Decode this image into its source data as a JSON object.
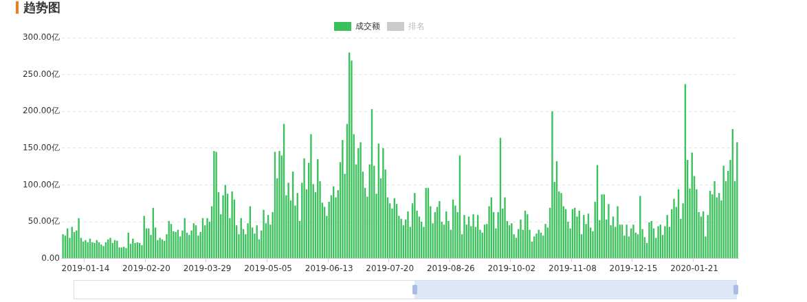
{
  "chart_data": {
    "type": "bar",
    "title": "趋势图",
    "categories": [
      null,
      null,
      null,
      null,
      null,
      null,
      null,
      null,
      null,
      null,
      "2019-01-14",
      null,
      null,
      null,
      null,
      null,
      null,
      null,
      null,
      null,
      null,
      null,
      null,
      null,
      null,
      null,
      null,
      null,
      null,
      null,
      null,
      null,
      null,
      null,
      null,
      null,
      null,
      "2019-02-20",
      null,
      null,
      null,
      null,
      null,
      null,
      null,
      null,
      null,
      null,
      null,
      null,
      null,
      null,
      null,
      null,
      null,
      null,
      null,
      null,
      null,
      null,
      null,
      null,
      null,
      null,
      "2019-03-29",
      null,
      null,
      null,
      null,
      null,
      null,
      null,
      null,
      null,
      null,
      null,
      null,
      null,
      null,
      null,
      null,
      null,
      null,
      null,
      null,
      null,
      null,
      null,
      null,
      null,
      null,
      "2019-05-05",
      null,
      null,
      null,
      null,
      null,
      null,
      null,
      null,
      null,
      null,
      null,
      null,
      null,
      null,
      null,
      null,
      null,
      null,
      null,
      null,
      null,
      null,
      null,
      null,
      null,
      null,
      "2019-06-13",
      null,
      null,
      null,
      null,
      null,
      null,
      null,
      null,
      null,
      null,
      null,
      null,
      null,
      null,
      null,
      null,
      null,
      null,
      null,
      null,
      null,
      null,
      null,
      null,
      null,
      null,
      "2019-07-20",
      null,
      null,
      null,
      null,
      null,
      null,
      null,
      null,
      null,
      null,
      null,
      null,
      null,
      null,
      null,
      null,
      null,
      null,
      null,
      null,
      null,
      null,
      null,
      null,
      null,
      null,
      "2019-08-26",
      null,
      null,
      null,
      null,
      null,
      null,
      null,
      null,
      null,
      null,
      null,
      null,
      null,
      null,
      null,
      null,
      null,
      null,
      null,
      null,
      null,
      null,
      null,
      null,
      null,
      null,
      "2019-10-02",
      null,
      null,
      null,
      null,
      null,
      null,
      null,
      null,
      null,
      null,
      null,
      null,
      null,
      null,
      null,
      null,
      null,
      null,
      null,
      null,
      null,
      null,
      null,
      null,
      null,
      null,
      "2019-11-08",
      null,
      null,
      null,
      null,
      null,
      null,
      null,
      null,
      null,
      null,
      null,
      null,
      null,
      null,
      null,
      null,
      null,
      null,
      null,
      null,
      null,
      null,
      null,
      null,
      null,
      null,
      "2019-12-15",
      null,
      null,
      null,
      null,
      null,
      null,
      null,
      null,
      null,
      null,
      null,
      null,
      null,
      null,
      null,
      null,
      null,
      null,
      null,
      null,
      null,
      null,
      null,
      null,
      null,
      null,
      "2020-01-21",
      null,
      null,
      null,
      null,
      null,
      null,
      null,
      null,
      null,
      null,
      null,
      null,
      null,
      null,
      null,
      null,
      null,
      null,
      null
    ],
    "series": [
      {
        "name": "成交额",
        "color": "#3ac15b",
        "values": [
          33,
          31,
          41,
          28,
          43,
          36,
          38,
          55,
          28,
          23,
          25,
          22,
          27,
          22,
          21,
          25,
          22,
          19,
          17,
          22,
          26,
          28,
          21,
          25,
          24,
          15,
          15,
          16,
          14,
          35,
          20,
          27,
          21,
          22,
          21,
          18,
          58,
          41,
          41,
          32,
          69,
          42,
          25,
          28,
          26,
          24,
          33,
          51,
          47,
          37,
          36,
          39,
          30,
          38,
          55,
          35,
          32,
          38,
          48,
          45,
          31,
          36,
          55,
          45,
          55,
          50,
          71,
          146,
          145,
          90,
          60,
          86,
          100,
          88,
          55,
          91,
          80,
          45,
          33,
          55,
          40,
          33,
          48,
          71,
          42,
          34,
          45,
          26,
          38,
          66,
          48,
          59,
          46,
          63,
          145,
          109,
          146,
          140,
          183,
          86,
          103,
          79,
          118,
          72,
          89,
          51,
          103,
          136,
          94,
          130,
          169,
          101,
          90,
          135,
          105,
          76,
          70,
          58,
          77,
          86,
          98,
          83,
          93,
          131,
          161,
          115,
          183,
          280,
          269,
          169,
          128,
          150,
          158,
          118,
          96,
          84,
          128,
          203,
          126,
          88,
          156,
          109,
          150,
          121,
          83,
          75,
          68,
          82,
          74,
          58,
          54,
          45,
          53,
          64,
          43,
          75,
          89,
          65,
          57,
          50,
          43,
          96,
          96,
          71,
          48,
          63,
          70,
          78,
          50,
          46,
          64,
          51,
          39,
          80,
          72,
          63,
          140,
          33,
          59,
          46,
          57,
          44,
          60,
          43,
          59,
          39,
          35,
          46,
          47,
          71,
          83,
          63,
          41,
          63,
          164,
          68,
          83,
          51,
          45,
          48,
          33,
          28,
          40,
          53,
          39,
          65,
          60,
          39,
          23,
          30,
          34,
          39,
          35,
          31,
          47,
          42,
          69,
          200,
          104,
          132,
          91,
          89,
          71,
          67,
          50,
          41,
          67,
          69,
          57,
          65,
          33,
          59,
          47,
          61,
          42,
          37,
          77,
          127,
          52,
          87,
          87,
          53,
          74,
          45,
          57,
          43,
          71,
          46,
          46,
          31,
          46,
          30,
          41,
          46,
          35,
          33,
          85,
          40,
          29,
          21,
          49,
          51,
          41,
          28,
          44,
          46,
          32,
          44,
          59,
          43,
          67,
          81,
          70,
          94,
          54,
          75,
          237,
          134,
          95,
          144,
          112,
          94,
          63,
          57,
          64,
          30,
          59,
          92,
          87,
          105,
          83,
          89,
          79,
          126,
          105,
          119,
          134,
          176,
          105,
          158
        ]
      },
      {
        "name": "排名",
        "type": "line",
        "color": "#cccccc",
        "values": [
          null,
          null,
          null,
          null,
          null,
          null,
          null,
          null,
          null,
          null,
          null,
          null,
          null,
          null,
          null,
          null,
          null,
          null,
          null,
          null,
          null,
          null,
          null,
          null,
          null,
          null,
          null,
          null,
          null,
          null,
          null,
          null,
          null,
          null,
          null,
          null,
          null,
          null,
          null,
          null,
          null,
          null,
          null,
          null,
          null,
          null,
          null,
          null,
          null,
          null,
          null,
          null,
          null,
          null,
          null,
          null,
          null,
          null,
          null,
          null,
          null,
          null,
          null,
          null,
          null,
          null,
          null,
          null,
          null,
          null,
          null,
          null,
          null,
          null,
          null,
          null,
          null,
          null,
          null,
          null,
          null,
          null,
          null,
          null,
          null,
          null,
          null,
          null,
          null,
          null,
          null,
          null,
          null,
          null,
          null,
          null,
          null,
          null,
          null,
          null,
          null,
          null,
          null,
          null,
          null,
          null,
          null,
          null,
          null,
          null,
          null,
          null,
          null,
          null,
          null,
          null,
          null,
          null,
          null,
          null,
          null,
          null,
          null,
          null,
          null,
          null,
          null,
          null,
          null,
          null,
          null,
          null,
          null,
          null,
          null,
          null,
          null,
          null,
          null,
          null,
          null,
          null,
          null,
          null,
          null,
          null,
          null,
          null,
          null,
          null,
          null,
          null,
          null,
          null,
          null,
          null,
          null,
          null,
          null,
          null,
          null,
          null,
          null,
          null,
          null,
          null,
          null,
          null,
          null,
          null,
          null,
          null,
          null,
          null,
          null,
          null,
          null,
          null,
          null,
          null,
          null,
          null,
          null,
          null,
          null,
          null,
          null,
          null,
          null,
          null,
          null,
          null,
          null,
          null,
          null,
          null,
          null,
          null,
          null,
          null,
          null,
          null,
          null,
          null,
          null,
          null,
          null,
          null,
          null,
          null,
          null,
          null,
          null,
          null,
          null,
          null,
          null,
          null,
          null,
          null,
          null,
          null,
          null,
          null,
          null,
          null,
          null,
          null,
          null,
          null,
          null,
          null,
          null,
          null,
          null,
          null,
          null,
          null,
          null,
          null,
          null,
          null,
          null,
          null,
          null,
          null,
          null,
          null,
          null,
          null,
          null,
          null,
          null,
          null,
          null,
          null,
          null,
          null,
          null,
          null,
          null,
          null,
          null,
          null,
          null,
          null,
          null,
          null,
          null,
          null,
          null,
          null,
          null,
          null,
          null,
          null,
          null,
          null,
          null,
          null,
          null,
          null,
          null,
          null,
          null,
          null,
          null,
          null,
          null,
          null,
          null,
          null,
          null,
          null,
          null,
          null,
          null,
          null,
          null,
          null
        ]
      }
    ],
    "ylim": [
      0,
      300
    ],
    "yticks": [
      {
        "value": 0,
        "label": "0.00"
      },
      {
        "value": 50,
        "label": "50.00亿"
      },
      {
        "value": 100,
        "label": "100.00亿"
      },
      {
        "value": 150,
        "label": "150.00亿"
      },
      {
        "value": 200,
        "label": "200.00亿"
      },
      {
        "value": 250,
        "label": "250.00亿"
      },
      {
        "value": 300,
        "label": "300.00亿"
      }
    ],
    "grid": "y",
    "legend": "top"
  }
}
